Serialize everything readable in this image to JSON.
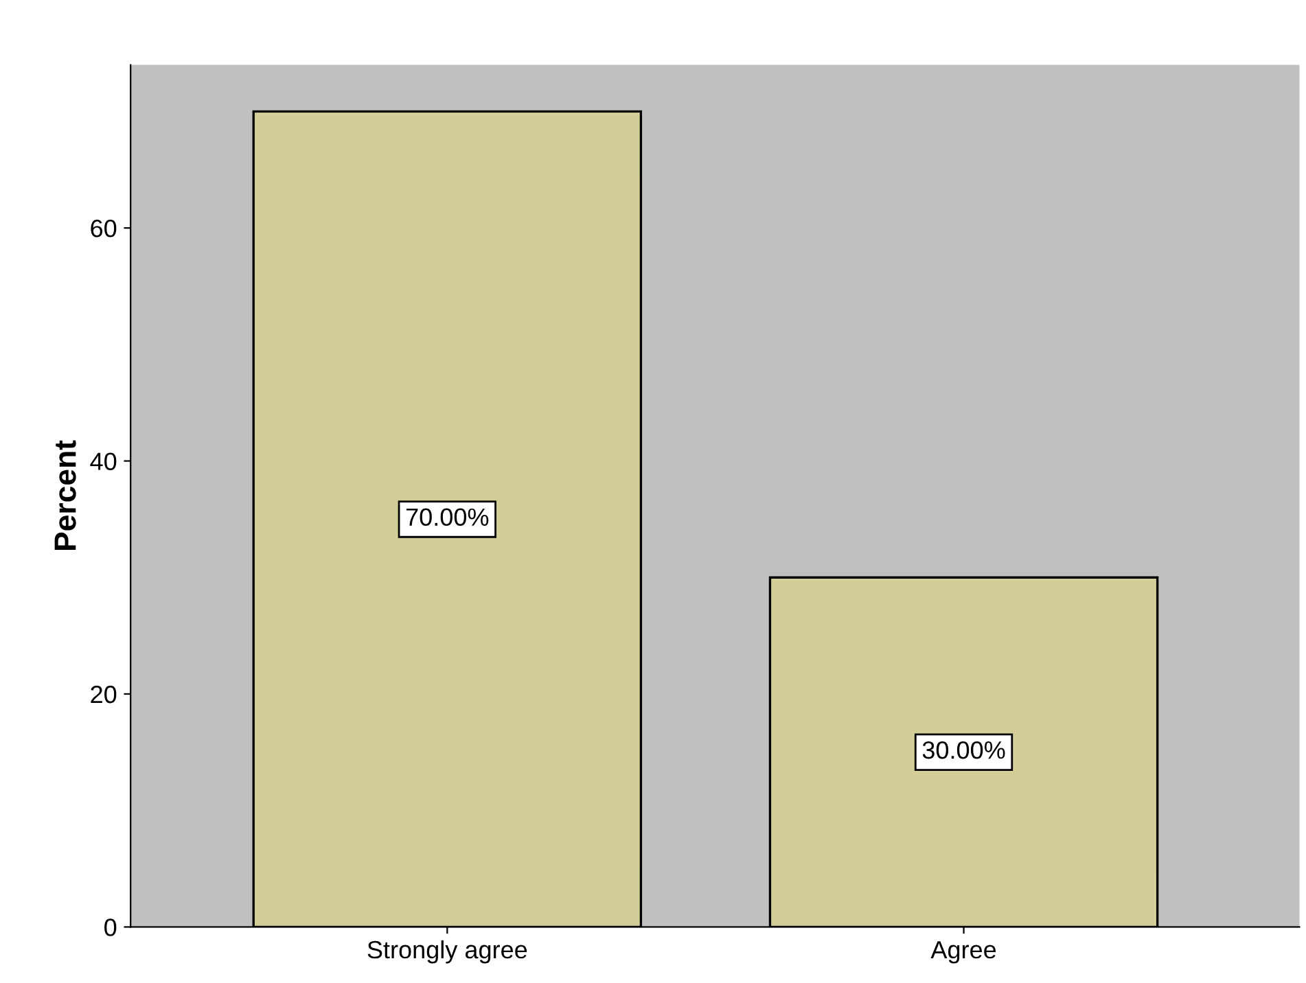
{
  "chart_data": {
    "type": "bar",
    "ylabel": "Percent",
    "categories": [
      "Strongly agree",
      "Agree"
    ],
    "values": [
      70,
      30
    ],
    "value_labels": [
      "70.00%",
      "30.00%"
    ],
    "color": "#d3cd98",
    "ylim": [
      0,
      74
    ],
    "yticks": [
      0,
      20,
      40,
      60
    ],
    "grid": false,
    "legend": false
  }
}
